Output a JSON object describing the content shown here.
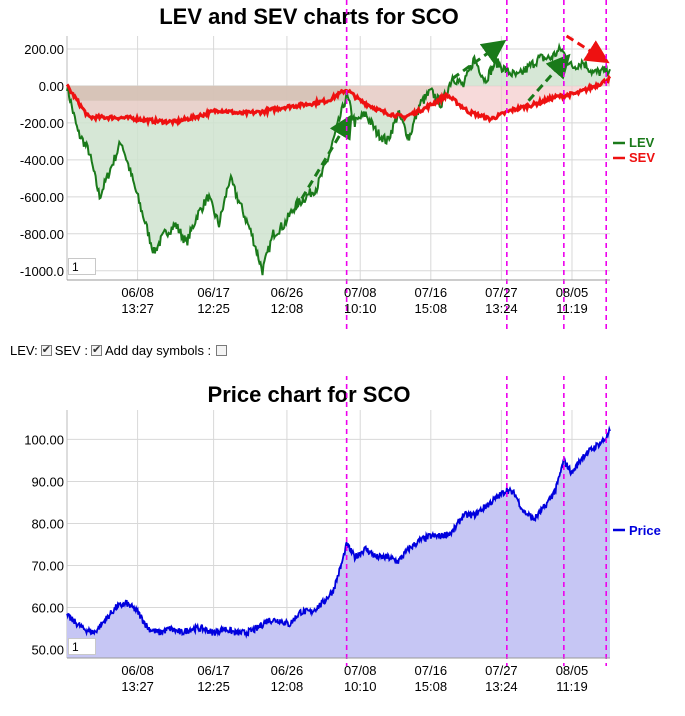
{
  "top_title": "LEV and SEV charts for SCO",
  "bottom_title": "Price chart for SCO",
  "controls": {
    "lev_label": "LEV:",
    "sev_label": "SEV :",
    "day_symbols_label": "Add day symbols :",
    "lev_checked": true,
    "sev_checked": true,
    "day_symbols_checked": false
  },
  "top_zoom_value": "1",
  "bottom_zoom_value": "1",
  "x_ticks": [
    {
      "date": "06/08",
      "time": "13:27"
    },
    {
      "date": "06/17",
      "time": "12:25"
    },
    {
      "date": "06/26",
      "time": "12:08"
    },
    {
      "date": "07/08",
      "time": "10:10"
    },
    {
      "date": "07/16",
      "time": "15:08"
    },
    {
      "date": "07/27",
      "time": "13:24"
    },
    {
      "date": "08/05",
      "time": "11:19"
    }
  ],
  "colors": {
    "lev": "#1a7a1a",
    "lev_fill": "#cfe3cf",
    "sev": "#ee1111",
    "sev_fill": "#f2c6c6",
    "price": "#0000dd",
    "price_fill": "#c6c6f4",
    "marker": "#ee00ee",
    "grid": "#d8d8d8"
  },
  "chart_data": [
    {
      "type": "line",
      "title": "LEV and SEV charts for SCO",
      "ylim": [
        -1050,
        270
      ],
      "y_ticks": [
        "200.00",
        "0.00",
        "-200.00",
        "-400.00",
        "-600.00",
        "-800.00",
        "-1000.0"
      ],
      "y_tick_values": [
        200,
        0,
        -200,
        -400,
        -600,
        -800,
        -1000
      ],
      "grid": true,
      "legend_position": "right",
      "x_index_range": [
        0,
        100
      ],
      "series": [
        {
          "name": "LEV",
          "x": [
            0,
            2,
            4,
            6,
            8,
            10,
            12,
            14,
            16,
            18,
            20,
            22,
            24,
            26,
            28,
            30,
            32,
            34,
            36,
            38,
            40,
            42,
            44,
            46,
            48,
            50,
            51.5,
            53,
            55,
            57,
            59,
            61,
            63,
            65,
            67,
            69,
            71,
            73,
            75,
            77,
            79,
            81,
            83,
            85,
            87,
            89,
            91,
            93,
            95,
            97,
            99,
            100
          ],
          "values": [
            0,
            -250,
            -350,
            -600,
            -450,
            -300,
            -500,
            -700,
            -900,
            -800,
            -750,
            -850,
            -700,
            -600,
            -750,
            -500,
            -650,
            -800,
            -1000,
            -800,
            -750,
            -650,
            -600,
            -550,
            -400,
            -200,
            -50,
            -200,
            -150,
            -250,
            -300,
            -150,
            -280,
            -100,
            -30,
            -100,
            50,
            0,
            150,
            30,
            130,
            80,
            50,
            100,
            150,
            150,
            200,
            100,
            130,
            70,
            80,
            90
          ]
        },
        {
          "name": "SEV",
          "x": [
            0,
            4,
            8,
            12,
            16,
            20,
            24,
            28,
            32,
            36,
            40,
            44,
            48,
            51.5,
            54,
            58,
            62,
            66,
            70,
            74,
            78,
            82,
            86,
            90,
            94,
            98,
            100
          ],
          "values": [
            0,
            -170,
            -170,
            -175,
            -190,
            -195,
            -165,
            -130,
            -150,
            -140,
            -115,
            -100,
            -80,
            -20,
            -80,
            -140,
            -170,
            -120,
            -50,
            -140,
            -180,
            -130,
            -100,
            -60,
            -40,
            10,
            40
          ]
        }
      ],
      "annotations": [
        {
          "kind": "green-dashed-arrow",
          "from": [
            42,
            -670
          ],
          "to": [
            52,
            -180
          ]
        },
        {
          "kind": "green-dashed-arrow",
          "from": [
            71,
            40
          ],
          "to": [
            80,
            230
          ]
        },
        {
          "kind": "green-dashed-arrow",
          "from": [
            85,
            -80
          ],
          "to": [
            92,
            150
          ]
        },
        {
          "kind": "red-dashed-arrow",
          "from": [
            92,
            270
          ],
          "to": [
            99,
            140
          ]
        }
      ],
      "vertical_markers_x": [
        51.5,
        81,
        91.5,
        99.3
      ]
    },
    {
      "type": "area",
      "title": "Price chart for SCO",
      "ylim": [
        48,
        107
      ],
      "y_ticks": [
        "100.00",
        "90.00",
        "80.00",
        "70.00",
        "60.00",
        "50.00"
      ],
      "y_tick_values": [
        100,
        90,
        80,
        70,
        60,
        50
      ],
      "grid": true,
      "legend_position": "right",
      "x_index_range": [
        0,
        100
      ],
      "series": [
        {
          "name": "Price",
          "x": [
            0,
            3,
            5,
            7,
            9,
            11,
            13,
            15,
            17,
            19,
            21,
            23,
            25,
            27,
            29,
            31,
            33,
            35,
            37,
            39,
            41,
            43,
            45,
            47,
            49,
            50.5,
            51.5,
            53,
            55,
            57,
            59,
            61,
            63,
            65,
            67,
            69,
            71,
            73,
            75,
            77,
            79,
            81,
            82.5,
            84,
            86,
            88,
            90,
            91.5,
            93,
            95,
            97,
            99,
            100
          ],
          "values": [
            58,
            55,
            54,
            57,
            60,
            61,
            59,
            55,
            54,
            55,
            54,
            55,
            55,
            54,
            55,
            54,
            54,
            55,
            57,
            57,
            56,
            59,
            59,
            61,
            64,
            70,
            75,
            72,
            74,
            72,
            72,
            71,
            74,
            76,
            77,
            77,
            78,
            82,
            82,
            84,
            86,
            88,
            87,
            83,
            81,
            84,
            88,
            95,
            92,
            96,
            98,
            100,
            102
          ]
        }
      ],
      "vertical_markers_x": [
        51.5,
        81,
        91.5,
        99.3
      ]
    }
  ]
}
